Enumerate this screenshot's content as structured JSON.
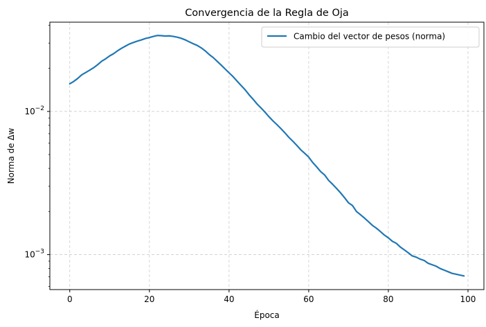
{
  "chart_data": {
    "type": "line",
    "title": "Convergencia de la Regla de Oja",
    "xlabel": "Época",
    "ylabel": "Norma de Δw",
    "xlim": [
      -5,
      104
    ],
    "ylim": [
      0.00057,
      0.042
    ],
    "yscale": "log",
    "grid": true,
    "legend_position": "top-right",
    "x_ticks": [
      {
        "value": 0,
        "label": "0"
      },
      {
        "value": 20,
        "label": "20"
      },
      {
        "value": 40,
        "label": "40"
      },
      {
        "value": 60,
        "label": "60"
      },
      {
        "value": 80,
        "label": "80"
      },
      {
        "value": 100,
        "label": "100"
      }
    ],
    "y_ticks": [
      {
        "value": 0.001,
        "base": "10",
        "exp": "−3"
      },
      {
        "value": 0.01,
        "base": "10",
        "exp": "−2"
      }
    ],
    "series": [
      {
        "name": "Cambio del vector de pesos (norma)",
        "color": "#1f77b4",
        "x": [
          0,
          1,
          2,
          3,
          4,
          5,
          6,
          7,
          8,
          9,
          10,
          11,
          12,
          13,
          14,
          15,
          16,
          17,
          18,
          19,
          20,
          21,
          22,
          23,
          24,
          25,
          26,
          27,
          28,
          29,
          30,
          31,
          32,
          33,
          34,
          35,
          36,
          37,
          38,
          39,
          40,
          41,
          42,
          43,
          44,
          45,
          46,
          47,
          48,
          49,
          50,
          51,
          52,
          53,
          54,
          55,
          56,
          57,
          58,
          59,
          60,
          61,
          62,
          63,
          64,
          65,
          66,
          67,
          68,
          69,
          70,
          71,
          72,
          73,
          74,
          75,
          76,
          77,
          78,
          79,
          80,
          81,
          82,
          83,
          84,
          85,
          86,
          87,
          88,
          89,
          90,
          91,
          92,
          93,
          94,
          95,
          96,
          97,
          98,
          99
        ],
        "values": [
          0.0156,
          0.0162,
          0.017,
          0.018,
          0.0187,
          0.0194,
          0.0202,
          0.0212,
          0.0224,
          0.0233,
          0.0244,
          0.0253,
          0.0265,
          0.0276,
          0.0286,
          0.0296,
          0.0303,
          0.031,
          0.0316,
          0.0323,
          0.0328,
          0.0334,
          0.0339,
          0.0338,
          0.0336,
          0.0337,
          0.0334,
          0.033,
          0.0324,
          0.0316,
          0.0306,
          0.0297,
          0.0289,
          0.0278,
          0.0265,
          0.025,
          0.0238,
          0.0224,
          0.0211,
          0.0198,
          0.0186,
          0.0175,
          0.0163,
          0.0152,
          0.0142,
          0.0131,
          0.0122,
          0.0113,
          0.0106,
          0.0099,
          0.0092,
          0.0086,
          0.0081,
          0.0076,
          0.0071,
          0.0066,
          0.0062,
          0.0058,
          0.0054,
          0.0051,
          0.0048,
          0.0044,
          0.0041,
          0.0038,
          0.0036,
          0.0033,
          0.0031,
          0.0029,
          0.0027,
          0.0025,
          0.0023,
          0.0022,
          0.002,
          0.0019,
          0.0018,
          0.0017,
          0.0016,
          0.00153,
          0.00145,
          0.00137,
          0.00131,
          0.00124,
          0.0012,
          0.00113,
          0.00108,
          0.00103,
          0.00098,
          0.00096,
          0.00093,
          0.00091,
          0.00087,
          0.00085,
          0.00083,
          0.0008,
          0.00078,
          0.00076,
          0.00074,
          0.00073,
          0.00072,
          0.00071
        ]
      }
    ]
  }
}
